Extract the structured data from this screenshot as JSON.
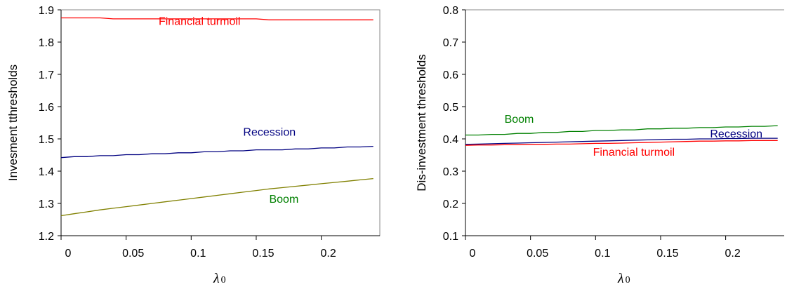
{
  "chart_data": [
    {
      "type": "line",
      "ylabel": "Invesment tthresholds",
      "xlabel": "λ",
      "xlabel_sub": "0",
      "xlim": [
        0,
        0.245
      ],
      "ylim": [
        1.2,
        1.9
      ],
      "xticks": [
        "0",
        "0.05",
        "0.1",
        "0.15",
        "0.2"
      ],
      "xtick_values": [
        0,
        0.05,
        0.1,
        0.15,
        0.2
      ],
      "yticks": [
        "1.2",
        "1.3",
        "1.4",
        "1.5",
        "1.6",
        "1.7",
        "1.8",
        "1.9"
      ],
      "ytick_values": [
        1.2,
        1.3,
        1.4,
        1.5,
        1.6,
        1.7,
        1.8,
        1.9
      ],
      "grid": false,
      "x": [
        0,
        0.01,
        0.02,
        0.03,
        0.04,
        0.05,
        0.06,
        0.07,
        0.08,
        0.09,
        0.1,
        0.11,
        0.12,
        0.13,
        0.14,
        0.15,
        0.16,
        0.17,
        0.18,
        0.19,
        0.2,
        0.21,
        0.22,
        0.23,
        0.24
      ],
      "series": [
        {
          "color": "#ff0000",
          "values": [
            1.875,
            1.875,
            1.875,
            1.875,
            1.872,
            1.872,
            1.872,
            1.872,
            1.872,
            1.872,
            1.872,
            1.872,
            1.872,
            1.872,
            1.872,
            1.872,
            1.869,
            1.869,
            1.869,
            1.869,
            1.869,
            1.869,
            1.869,
            1.869,
            1.869
          ]
        },
        {
          "color": "#000080",
          "values": [
            1.442,
            1.445,
            1.445,
            1.448,
            1.448,
            1.451,
            1.451,
            1.454,
            1.454,
            1.457,
            1.457,
            1.46,
            1.46,
            1.463,
            1.463,
            1.466,
            1.466,
            1.466,
            1.469,
            1.469,
            1.472,
            1.472,
            1.475,
            1.475,
            1.477
          ]
        },
        {
          "color": "#808000",
          "values": [
            1.262,
            1.268,
            1.274,
            1.28,
            1.285,
            1.29,
            1.295,
            1.3,
            1.305,
            1.31,
            1.315,
            1.32,
            1.325,
            1.33,
            1.335,
            1.34,
            1.345,
            1.349,
            1.353,
            1.357,
            1.361,
            1.365,
            1.369,
            1.373,
            1.377
          ]
        }
      ],
      "annotations": [
        {
          "text": "Financial turmoil",
          "x": 0.075,
          "y": 1.853,
          "color": "#ff0000"
        },
        {
          "text": "Recession",
          "x": 0.14,
          "y": 1.51,
          "color": "#000080"
        },
        {
          "text": "Boom",
          "x": 0.16,
          "y": 1.302,
          "color": "#008000"
        }
      ]
    },
    {
      "type": "line",
      "ylabel": "Dis-investment thresholds",
      "xlabel": "λ",
      "xlabel_sub": "0",
      "xlim": [
        0,
        0.245
      ],
      "ylim": [
        0.1,
        0.8
      ],
      "xticks": [
        "0",
        "0.05",
        "0.1",
        "0.15",
        "0.2"
      ],
      "xtick_values": [
        0,
        0.05,
        0.1,
        0.15,
        0.2
      ],
      "yticks": [
        "0.1",
        "0.2",
        "0.3",
        "0.4",
        "0.5",
        "0.6",
        "0.7",
        "0.8"
      ],
      "ytick_values": [
        0.1,
        0.2,
        0.3,
        0.4,
        0.5,
        0.6,
        0.7,
        0.8
      ],
      "grid": false,
      "x": [
        0,
        0.01,
        0.02,
        0.03,
        0.04,
        0.05,
        0.06,
        0.07,
        0.08,
        0.09,
        0.1,
        0.11,
        0.12,
        0.13,
        0.14,
        0.15,
        0.16,
        0.17,
        0.18,
        0.19,
        0.2,
        0.21,
        0.22,
        0.23,
        0.24
      ],
      "series": [
        {
          "color": "#008000",
          "values": [
            0.412,
            0.412,
            0.414,
            0.414,
            0.417,
            0.417,
            0.42,
            0.42,
            0.423,
            0.423,
            0.426,
            0.426,
            0.428,
            0.428,
            0.431,
            0.431,
            0.433,
            0.433,
            0.435,
            0.435,
            0.437,
            0.437,
            0.439,
            0.439,
            0.441
          ]
        },
        {
          "color": "#000080",
          "values": [
            0.383,
            0.384,
            0.385,
            0.386,
            0.387,
            0.388,
            0.389,
            0.39,
            0.391,
            0.392,
            0.393,
            0.394,
            0.395,
            0.396,
            0.397,
            0.398,
            0.399,
            0.399,
            0.4,
            0.4,
            0.401,
            0.401,
            0.402,
            0.402,
            0.402
          ]
        },
        {
          "color": "#ff0000",
          "values": [
            0.38,
            0.381,
            0.381,
            0.382,
            0.382,
            0.383,
            0.383,
            0.384,
            0.384,
            0.385,
            0.386,
            0.386,
            0.387,
            0.388,
            0.389,
            0.39,
            0.391,
            0.392,
            0.393,
            0.393,
            0.394,
            0.394,
            0.395,
            0.395,
            0.395
          ]
        }
      ],
      "annotations": [
        {
          "text": "Boom",
          "x": 0.03,
          "y": 0.45,
          "color": "#008000"
        },
        {
          "text": "Recession",
          "x": 0.188,
          "y": 0.404,
          "color": "#000080"
        },
        {
          "text": "Financial turmoil",
          "x": 0.098,
          "y": 0.348,
          "color": "#ff0000"
        }
      ]
    }
  ]
}
